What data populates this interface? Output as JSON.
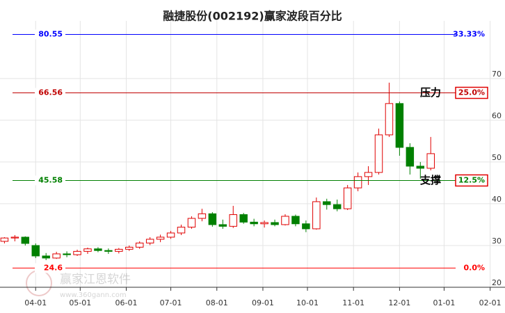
{
  "chart_data": {
    "type": "candlestick",
    "title": "融捷股份(002192)赢家波段百分比",
    "watermark": "赢家江恩软件",
    "watermark_url": "www.360gann.com",
    "x": [
      -21,
      -14,
      -7,
      0,
      7,
      14,
      21,
      28,
      35,
      42,
      49,
      56,
      63,
      70,
      77,
      84,
      91,
      98,
      105,
      112,
      119,
      126,
      133,
      140,
      147,
      154,
      161,
      168,
      175,
      182,
      189,
      196,
      203,
      210,
      217,
      224,
      231,
      238,
      245,
      252,
      259,
      266
    ],
    "open": [
      31,
      31.8,
      32,
      30,
      27.5,
      27,
      28,
      27.8,
      28.6,
      29.2,
      28.8,
      28.6,
      29.1,
      29.6,
      30.6,
      31.5,
      32,
      33,
      34.4,
      36.5,
      37.6,
      35,
      34.6,
      37.4,
      35.6,
      35.2,
      35.5,
      35,
      37,
      35.2,
      34,
      40.5,
      39.8,
      38.8,
      43.8,
      46.5,
      47.5,
      56.5,
      64,
      53.5,
      49,
      48.5
    ],
    "high": [
      32,
      32.5,
      32.2,
      30.5,
      28.2,
      28.5,
      28.6,
      29,
      29.5,
      29.6,
      29.3,
      29.4,
      30,
      31,
      32,
      32.6,
      33.5,
      35,
      37,
      38.8,
      38,
      36.2,
      39.5,
      37.8,
      36.4,
      36,
      36.2,
      37.5,
      37.4,
      36,
      41.5,
      41.2,
      41,
      44.5,
      47.5,
      49,
      58,
      69,
      64.5,
      54.5,
      50,
      56
    ],
    "low": [
      30.5,
      31,
      30,
      27,
      26.5,
      26.8,
      27.2,
      27.5,
      28,
      28.4,
      28,
      28.1,
      28.7,
      29.2,
      30.1,
      30.8,
      31.6,
      32.5,
      34,
      35.8,
      34.5,
      34,
      34.2,
      35.2,
      34.6,
      34.3,
      34.6,
      34.8,
      34.6,
      33.2,
      33.8,
      38.6,
      38.2,
      38.5,
      43,
      44.5,
      47,
      56,
      51.5,
      47,
      46,
      48
    ],
    "close": [
      31.8,
      32,
      30.5,
      27.5,
      27,
      28,
      27.8,
      28.6,
      29.2,
      28.8,
      28.6,
      29.1,
      29.6,
      30.6,
      31.5,
      32,
      33,
      34.4,
      36.5,
      37.6,
      35,
      34.6,
      37.4,
      35.6,
      35.2,
      35.5,
      35,
      37,
      35.2,
      34,
      40.5,
      39.8,
      38.8,
      43.8,
      46.5,
      47.5,
      56.5,
      64,
      53.5,
      49,
      48.5,
      52
    ],
    "up_color": "#e00000",
    "down_color": "#008000",
    "xlim": [
      -24,
      316
    ],
    "xticks": [
      {
        "value": 0,
        "label": "04-01"
      },
      {
        "value": 30,
        "label": "05-01"
      },
      {
        "value": 61,
        "label": "06-01"
      },
      {
        "value": 91,
        "label": "07-01"
      },
      {
        "value": 122,
        "label": "08-01"
      },
      {
        "value": 153,
        "label": "09-01"
      },
      {
        "value": 183,
        "label": "10-01"
      },
      {
        "value": 214,
        "label": "11-01"
      },
      {
        "value": 245,
        "label": "12-01"
      },
      {
        "value": 275,
        "label": "01-01"
      },
      {
        "value": 306,
        "label": "02-01"
      }
    ],
    "ylim": [
      20,
      83.8
    ],
    "yticks": [
      20,
      30,
      40,
      50,
      60,
      70
    ],
    "grid": true,
    "levels": [
      {
        "value": 80.55,
        "pct": 33.33,
        "pct_label": "33.33%",
        "color": "#0000ff"
      },
      {
        "value": 66.56,
        "pct": 25,
        "pct_label": "25.0%",
        "color": "#c00000",
        "tag": "压力",
        "boxed": true
      },
      {
        "value": 45.58,
        "pct": 12.5,
        "pct_label": "12.5%",
        "color": "#008000",
        "tag": "支撑",
        "boxed": true
      },
      {
        "value": 24.6,
        "pct": 0,
        "pct_label": "0.0%",
        "color": "#ff0000"
      }
    ]
  }
}
